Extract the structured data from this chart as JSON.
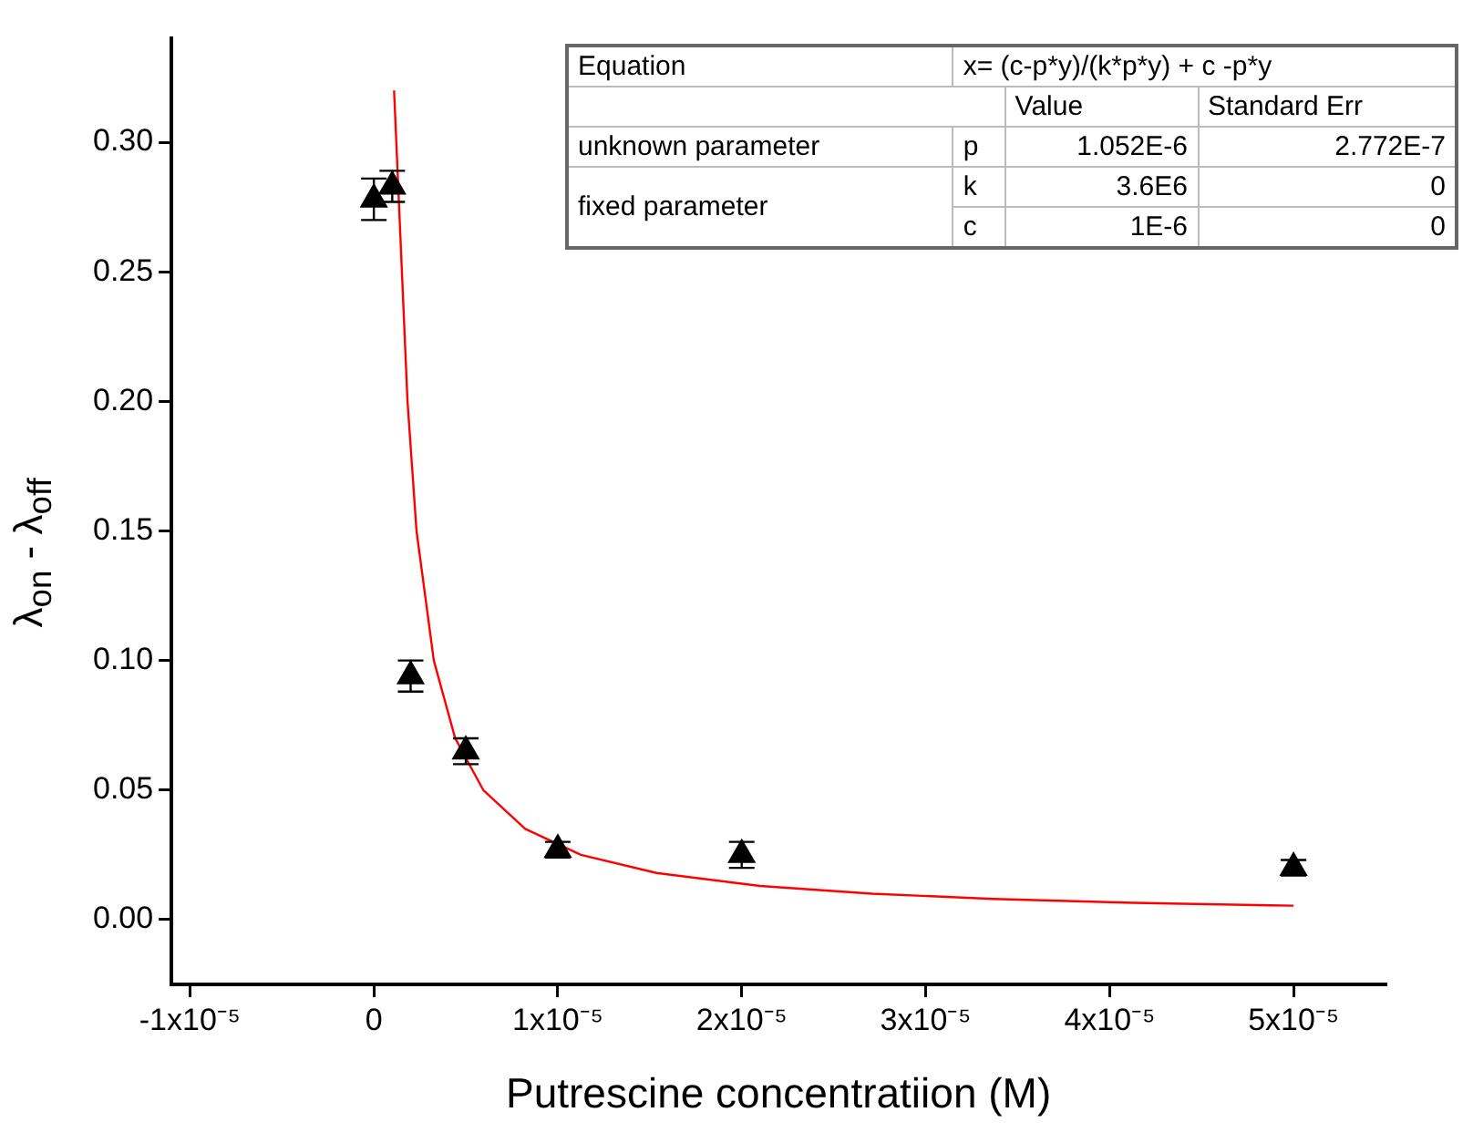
{
  "chart_data": {
    "type": "scatter",
    "xlabel": "Putrescine concentratiion (M)",
    "ylabel": "λ$_{on}$ - λ$_{off}$",
    "xlim": [
      -1.1e-05,
      5.5e-05
    ],
    "ylim": [
      -0.025,
      0.34
    ],
    "xticks": [
      {
        "value": -1e-05,
        "label": "-1x10⁻⁵"
      },
      0,
      {
        "value": 1e-05,
        "label": "1x10⁻⁵"
      },
      {
        "value": 2e-05,
        "label": "2x10⁻⁵"
      },
      {
        "value": 3e-05,
        "label": "3x10⁻⁵"
      },
      {
        "value": 4e-05,
        "label": "4x10⁻⁵"
      },
      {
        "value": 5e-05,
        "label": "5x10⁻⁵"
      }
    ],
    "yticks": [
      {
        "value": 0,
        "label": "0.00"
      },
      {
        "value": 0.05,
        "label": "0.05"
      },
      {
        "value": 0.1,
        "label": "0.10"
      },
      {
        "value": 0.15,
        "label": "0.15"
      },
      {
        "value": 0.2,
        "label": "0.20"
      },
      {
        "value": 0.25,
        "label": "0.25"
      },
      {
        "value": 0.3,
        "label": "0.30"
      }
    ],
    "legend": false,
    "series": [
      {
        "type": "scatter",
        "color": "#000000",
        "marker": "triangle",
        "x": [
          0,
          1e-06,
          2e-06,
          5e-06,
          1e-05,
          2e-05,
          5e-05
        ],
        "values": [
          0.278,
          0.283,
          0.094,
          0.065,
          0.027,
          0.025,
          0.02
        ],
        "errors": [
          0.008,
          0.006,
          0.006,
          0.005,
          0.003,
          0.005,
          0.003
        ]
      },
      {
        "type": "line",
        "color": "#ff0000",
        "marker": "none",
        "line_style": "solid",
        "x": [
          1.1e-06,
          1.83e-06,
          2.32e-06,
          3.26e-06,
          4.42e-06,
          5.95e-06,
          8.23e-06,
          1.126e-05,
          1.537e-05,
          2.1e-05,
          2.71e-05,
          3.37e-05,
          4.13e-05,
          4.87e-05,
          5e-05
        ],
        "values": [
          0.32,
          0.2,
          0.15,
          0.1,
          0.07,
          0.05,
          0.035,
          0.025,
          0.018,
          0.013,
          0.01,
          0.008,
          0.0065,
          0.0055,
          0.0054
        ]
      }
    ],
    "annotations": [
      "Equation",
      "x= (c-p*y)/(k*p*y) + c -p*y",
      "Value",
      "Standard Err",
      "unknown parameter",
      "p",
      "1.052E-6",
      "2.772E-7",
      "fixed parameter",
      "k",
      "3.6E6",
      "0",
      "c",
      "1E-6",
      "0"
    ]
  }
}
